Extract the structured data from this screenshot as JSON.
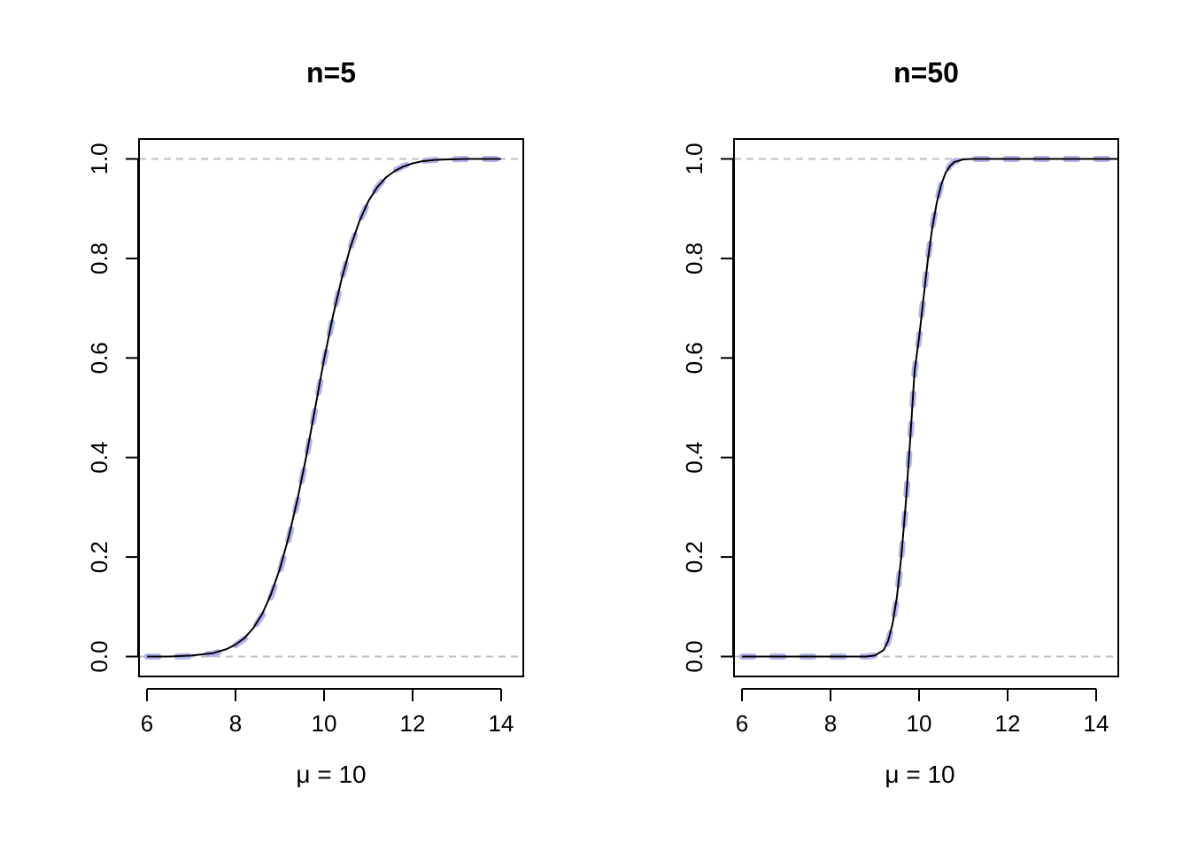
{
  "colors": {
    "dashed_curve": "#b3b3f0",
    "solid_curve": "#000000",
    "reference_lines": "#bebebe"
  },
  "chart_data": [
    {
      "type": "line",
      "title": "n=5",
      "xlabel": "μ = 10",
      "ylabel": "",
      "xlim": [
        5.82,
        14.5
      ],
      "ylim": [
        -0.04,
        1.04
      ],
      "x_ticks": [
        "6",
        "8",
        "10",
        "12",
        "14"
      ],
      "y_ticks": [
        "0.0",
        "0.2",
        "0.4",
        "0.6",
        "0.8",
        "1.0"
      ],
      "reference_lines_y": [
        0,
        1
      ],
      "grid": false,
      "x": [
        6.0,
        6.5,
        7.0,
        7.5,
        7.8,
        8.0,
        8.2,
        8.4,
        8.6,
        8.8,
        9.0,
        9.2,
        9.4,
        9.6,
        9.8,
        10.0,
        10.2,
        10.4,
        10.6,
        10.8,
        11.0,
        11.2,
        11.4,
        11.6,
        11.8,
        12.0,
        12.2,
        12.5,
        12.8,
        13.2,
        14.0
      ],
      "series": [
        {
          "style": "solid-black",
          "values": [
            0.0,
            0.0,
            0.002,
            0.007,
            0.015,
            0.024,
            0.037,
            0.057,
            0.085,
            0.125,
            0.176,
            0.24,
            0.316,
            0.403,
            0.5,
            0.597,
            0.684,
            0.76,
            0.824,
            0.875,
            0.915,
            0.943,
            0.963,
            0.976,
            0.985,
            0.991,
            0.995,
            0.998,
            0.999,
            1.0,
            1.0
          ]
        },
        {
          "style": "dashed-blue-thick",
          "values": [
            0.0,
            0.0,
            0.001,
            0.006,
            0.013,
            0.023,
            0.035,
            0.055,
            0.082,
            0.12,
            0.171,
            0.236,
            0.312,
            0.4,
            0.497,
            0.593,
            0.682,
            0.759,
            0.823,
            0.874,
            0.914,
            0.943,
            0.963,
            0.977,
            0.986,
            0.992,
            0.996,
            0.998,
            0.999,
            1.0,
            1.0
          ]
        }
      ]
    },
    {
      "type": "line",
      "title": "n=50",
      "xlabel": "μ = 10",
      "ylabel": "",
      "xlim": [
        5.82,
        14.5
      ],
      "ylim": [
        -0.04,
        1.04
      ],
      "x_ticks": [
        "6",
        "8",
        "10",
        "12",
        "14"
      ],
      "y_ticks": [
        "0.0",
        "0.2",
        "0.4",
        "0.6",
        "0.8",
        "1.0"
      ],
      "reference_lines_y": [
        0,
        1
      ],
      "grid": false,
      "x": [
        6.0,
        8.8,
        9.0,
        9.2,
        9.3,
        9.4,
        9.5,
        9.6,
        9.7,
        9.8,
        9.9,
        10.0,
        10.1,
        10.2,
        10.3,
        10.4,
        10.5,
        10.6,
        10.7,
        10.8,
        11.0,
        11.2,
        14.5
      ],
      "series": [
        {
          "style": "solid-black",
          "values": [
            0.0,
            0.0,
            0.002,
            0.013,
            0.031,
            0.065,
            0.12,
            0.202,
            0.308,
            0.436,
            0.575,
            0.64,
            0.72,
            0.798,
            0.862,
            0.912,
            0.948,
            0.972,
            0.986,
            0.994,
            0.999,
            1.0,
            1.0
          ]
        },
        {
          "style": "dashed-blue-thick",
          "values": [
            0.0,
            0.0,
            0.002,
            0.012,
            0.03,
            0.063,
            0.118,
            0.2,
            0.306,
            0.434,
            0.573,
            0.64,
            0.722,
            0.8,
            0.864,
            0.913,
            0.949,
            0.973,
            0.987,
            0.995,
            0.999,
            1.0,
            1.0
          ]
        }
      ]
    }
  ]
}
